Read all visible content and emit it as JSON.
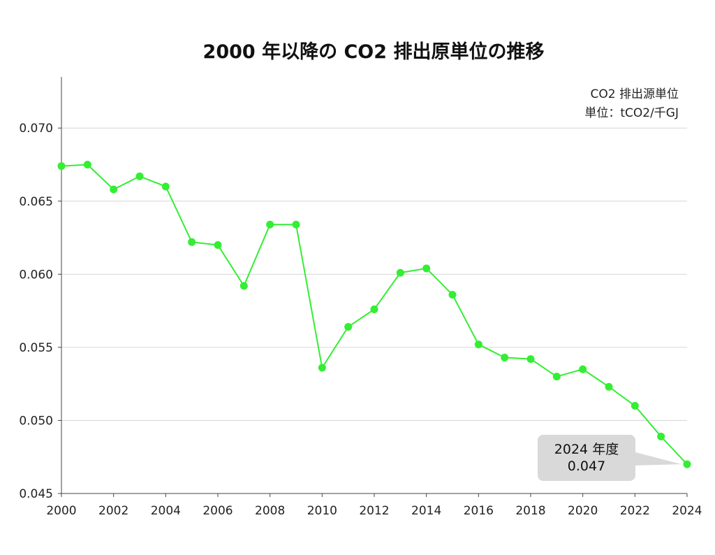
{
  "chart_data": {
    "type": "line",
    "title": "2000 年以降の CO2 排出原単位の推移",
    "xlabel": "",
    "ylabel": "",
    "x": [
      2000,
      2001,
      2002,
      2003,
      2004,
      2005,
      2006,
      2007,
      2008,
      2009,
      2010,
      2011,
      2012,
      2013,
      2014,
      2015,
      2016,
      2017,
      2018,
      2019,
      2020,
      2021,
      2022,
      2023,
      2024
    ],
    "series": [
      {
        "name": "CO2 排出源単位",
        "color": "#33ee33",
        "values": [
          0.0674,
          0.0675,
          0.0658,
          0.0667,
          0.066,
          0.0622,
          0.062,
          0.0592,
          0.0634,
          0.0634,
          0.0536,
          0.0564,
          0.0576,
          0.0601,
          0.0604,
          0.0586,
          0.0552,
          0.0543,
          0.0542,
          0.053,
          0.0535,
          0.0523,
          0.051,
          0.0489,
          0.047
        ]
      }
    ],
    "xlim": [
      2000,
      2024
    ],
    "ylim": [
      0.045,
      0.0735
    ],
    "x_ticks": [
      "2000",
      "2002",
      "2004",
      "2006",
      "2008",
      "2010",
      "2012",
      "2014",
      "2016",
      "2018",
      "2020",
      "2022",
      "2024"
    ],
    "y_ticks": [
      "0.045",
      "0.050",
      "0.055",
      "0.060",
      "0.065",
      "0.070"
    ],
    "grid": "horizontal",
    "annotation_note": [
      "CO2 排出源単位",
      "単位：tCO2/千GJ"
    ],
    "callout": {
      "lines": [
        "2024 年度",
        "0.047"
      ],
      "target_year": 2024,
      "target_value": 0.047
    }
  }
}
